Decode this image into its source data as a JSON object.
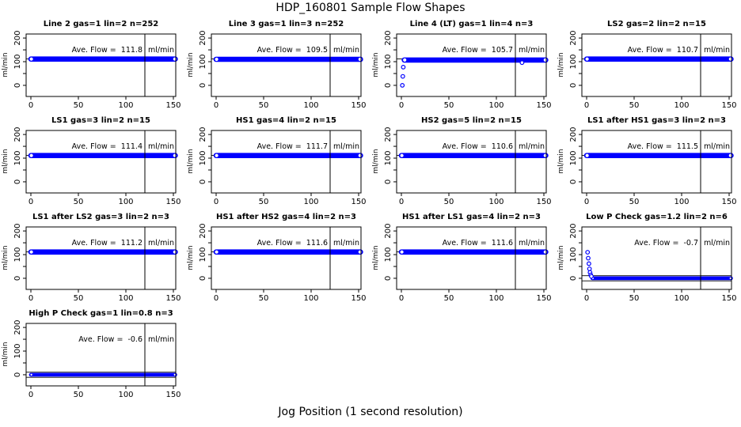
{
  "figure": {
    "title": "HDP_160801  Sample Flow Shapes",
    "xlabel": "Jog Position (1 second resolution)",
    "point_color": "#0000ff",
    "axis_color": "#000000",
    "background": "#ffffff"
  },
  "chart_data": {
    "type": "scatter",
    "title": "HDP_160801  Sample Flow Shapes",
    "xlabel": "Jog Position (1 second resolution)",
    "ylabel": "ml/min",
    "xlim": [
      -5,
      152.5
    ],
    "ylim": [
      -47,
      217
    ],
    "x_ticks": [
      0,
      50,
      100,
      150
    ],
    "y_ticks_labeled": [
      0,
      100,
      200
    ],
    "y_ticks_minor": [
      50,
      150
    ],
    "vline_x": 120,
    "grid": "off",
    "legend": "none",
    "ann_label": "Ave. Flow =",
    "point_color": "#0000ff",
    "panels": [
      {
        "id": "line-2",
        "title": "Line 2 gas=1 lin=2 n=252",
        "ave_flow": "111.8",
        "unit": "ml/min",
        "band": {
          "x_start": 0,
          "x_end": 152,
          "center": 111,
          "half": 11
        },
        "ref_lines": [
          112
        ],
        "points": []
      },
      {
        "id": "line-3",
        "title": "Line 3 gas=1 lin=3 n=252",
        "ave_flow": "109.5",
        "unit": "ml/min",
        "band": {
          "x_start": 0,
          "x_end": 152,
          "center": 110,
          "half": 11
        },
        "ref_lines": [
          112
        ],
        "points": []
      },
      {
        "id": "line-4-lt",
        "title": "Line 4 (LT) gas=1 lin=4 n=3",
        "ave_flow": "105.7",
        "unit": "ml/min",
        "band": {
          "x_start": 3,
          "x_end": 152,
          "center": 107,
          "half": 11
        },
        "ref_lines": [
          112
        ],
        "points": [
          [
            1,
            0
          ],
          [
            1.5,
            38
          ],
          [
            2,
            77
          ],
          [
            127,
            96
          ]
        ]
      },
      {
        "id": "ls2",
        "title": "LS2 gas=2 lin=2 n=15",
        "ave_flow": "110.7",
        "unit": "ml/min",
        "band": {
          "x_start": 0,
          "x_end": 152,
          "center": 111,
          "half": 11
        },
        "ref_lines": [
          112
        ],
        "points": []
      },
      {
        "id": "ls1",
        "title": "LS1 gas=3 lin=2 n=15",
        "ave_flow": "111.4",
        "unit": "ml/min",
        "band": {
          "x_start": 0,
          "x_end": 152,
          "center": 111,
          "half": 11
        },
        "ref_lines": [
          112
        ],
        "points": []
      },
      {
        "id": "hs1",
        "title": "HS1 gas=4 lin=2 n=15",
        "ave_flow": "111.7",
        "unit": "ml/min",
        "band": {
          "x_start": 0,
          "x_end": 152,
          "center": 111,
          "half": 11
        },
        "ref_lines": [
          112
        ],
        "points": []
      },
      {
        "id": "hs2",
        "title": "HS2 gas=5 lin=2 n=15",
        "ave_flow": "110.6",
        "unit": "ml/min",
        "band": {
          "x_start": 0,
          "x_end": 152,
          "center": 111,
          "half": 11
        },
        "ref_lines": [
          112
        ],
        "points": []
      },
      {
        "id": "ls1-after-hs1",
        "title": "LS1 after HS1 gas=3 lin=2 n=3",
        "ave_flow": "111.5",
        "unit": "ml/min",
        "band": {
          "x_start": 0,
          "x_end": 152,
          "center": 111,
          "half": 11
        },
        "ref_lines": [
          112
        ],
        "points": []
      },
      {
        "id": "ls1-after-ls2",
        "title": "LS1 after LS2 gas=3 lin=2 n=3",
        "ave_flow": "111.2",
        "unit": "ml/min",
        "band": {
          "x_start": 0,
          "x_end": 152,
          "center": 111,
          "half": 11
        },
        "ref_lines": [
          112
        ],
        "points": []
      },
      {
        "id": "hs1-after-hs2",
        "title": "HS1 after HS2 gas=4 lin=2 n=3",
        "ave_flow": "111.6",
        "unit": "ml/min",
        "band": {
          "x_start": 0,
          "x_end": 152,
          "center": 111,
          "half": 11
        },
        "ref_lines": [
          112
        ],
        "points": []
      },
      {
        "id": "hs1-after-ls1",
        "title": "HS1 after LS1 gas=4 lin=2 n=3",
        "ave_flow": "111.6",
        "unit": "ml/min",
        "band": {
          "x_start": 0,
          "x_end": 152,
          "center": 111,
          "half": 11
        },
        "ref_lines": [
          112
        ],
        "points": []
      },
      {
        "id": "low-p-check",
        "title": "Low P Check gas=1.2 lin=2 n=6",
        "ave_flow": "-0.7",
        "unit": "ml/min",
        "band": {
          "x_start": 6,
          "x_end": 152,
          "center": 0,
          "half": 8
        },
        "ref_lines": [
          -11,
          11
        ],
        "points": [
          [
            1,
            110
          ],
          [
            1.7,
            85
          ],
          [
            2.4,
            62
          ],
          [
            3,
            40
          ],
          [
            3.6,
            25
          ],
          [
            4.3,
            14
          ],
          [
            5,
            8
          ]
        ]
      },
      {
        "id": "high-p-check",
        "title": "High P Check gas=1 lin=0.8 n=3",
        "ave_flow": "-0.6",
        "unit": "ml/min",
        "band": {
          "x_start": 0,
          "x_end": 152,
          "center": 0,
          "half": 8
        },
        "ref_lines": [
          -11,
          11
        ],
        "points": []
      }
    ]
  }
}
